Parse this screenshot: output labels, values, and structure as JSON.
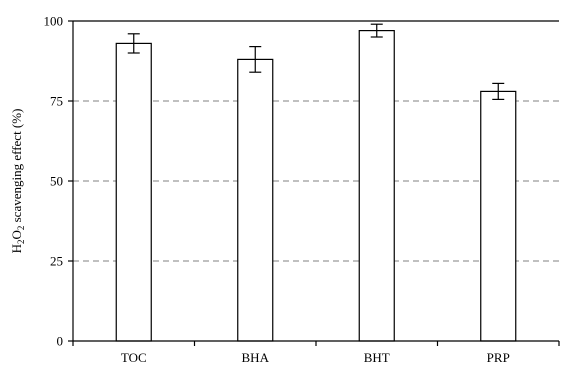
{
  "chart_data": {
    "type": "bar",
    "title": "",
    "xlabel": "",
    "ylabel_parts": [
      "H",
      "2",
      "O",
      "2",
      " scavenging effect (%)"
    ],
    "categories": [
      "TOC",
      "BHA",
      "BHT",
      "PRP"
    ],
    "values": [
      93,
      88,
      97,
      78
    ],
    "errors": [
      3,
      4,
      2,
      2.5
    ],
    "ylim": [
      0,
      100
    ],
    "yticks": [
      0,
      25,
      50,
      75,
      100
    ],
    "ytick_labels": [
      "0",
      "25",
      "50",
      "75",
      "100"
    ],
    "grid": "horizontal dashed at 25, 50, 75",
    "legend": "none",
    "colors": {
      "bar_fill": "#ffffff",
      "bar_stroke": "#000000",
      "grid": "#808080"
    }
  }
}
